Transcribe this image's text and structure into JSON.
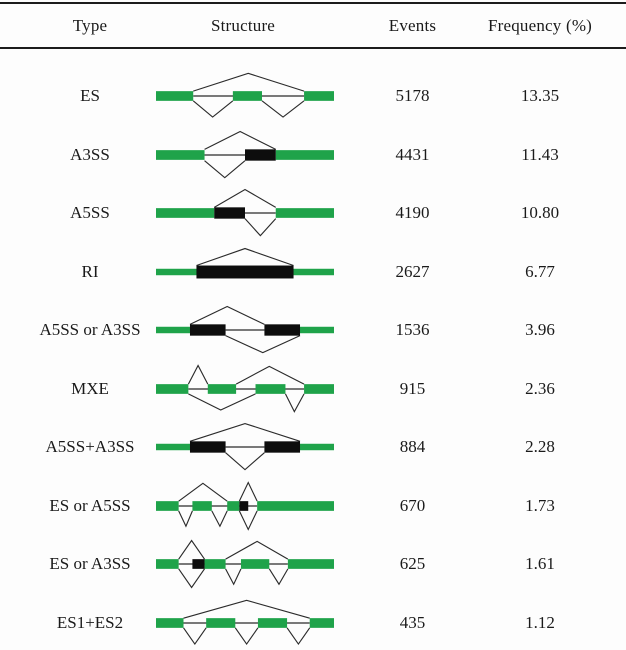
{
  "table": {
    "headers": [
      "Type",
      "Structure",
      "Events",
      "Frequency (%)"
    ],
    "rows": [
      {
        "type": "ES",
        "structure": "es",
        "structure_desc": "three green exons, upper skip junction over middle exon, two lower inclusion junctions",
        "events": "5178",
        "frequency": "13.35"
      },
      {
        "type": "A3SS",
        "structure": "a3ss",
        "structure_desc": "green exons with black alternative 3' extension on downstream exon, upper long junction, lower short junction",
        "events": "4431",
        "frequency": "11.43"
      },
      {
        "type": "A5SS",
        "structure": "a5ss",
        "structure_desc": "green exons with black alternative 5' extension on upstream exon, upper long junction, lower short junction",
        "events": "4190",
        "frequency": "10.80"
      },
      {
        "type": "RI",
        "structure": "ri",
        "structure_desc": "two green exons with large black retained intron between them and upper splice junction",
        "events": "2627",
        "frequency": "6.77"
      },
      {
        "type": "A5SS or A3SS",
        "structure": "a5ss_or_a3ss",
        "structure_desc": "two black alternative regions flanked by green, offset upper and lower junctions",
        "events": "1536",
        "frequency": "3.96"
      },
      {
        "type": "MXE",
        "structure": "mxe",
        "structure_desc": "four green exons, upper path includes second exon, lower path includes third exon (mutually exclusive)",
        "events": "915",
        "frequency": "2.36"
      },
      {
        "type": "A5SS+A3SS",
        "structure": "a5ss_plus_a3ss",
        "structure_desc": "two black alternative regions flanked by green, wide upper junction and narrow lower junction",
        "events": "884",
        "frequency": "2.28"
      },
      {
        "type": "ES or A5SS",
        "structure": "es_or_a5ss",
        "structure_desc": "four green exons with small black 5' extension and diamond junction near fourth exon, upper skip junction",
        "events": "670",
        "frequency": "1.73"
      },
      {
        "type": "ES or A3SS",
        "structure": "es_or_a3ss",
        "structure_desc": "four green exons with small black 3' extension and diamond junction near first exon, upper skip junction",
        "events": "625",
        "frequency": "1.61"
      },
      {
        "type": "ES1+ES2",
        "structure": "es1_plus_es2",
        "structure_desc": "four green exons, wide upper junction skipping two middle exons, three lower inclusion junctions",
        "events": "435",
        "frequency": "1.12"
      }
    ]
  },
  "colors": {
    "exon_green": "#1fa34a",
    "alt_region_black": "#0d0d0d",
    "junction_line": "#2b2b2b"
  },
  "chart_data": {
    "type": "table",
    "title": "",
    "columns": [
      "Type",
      "Structure",
      "Events",
      "Frequency (%)"
    ],
    "rows": [
      [
        "ES",
        5178,
        13.35
      ],
      [
        "A3SS",
        4431,
        11.43
      ],
      [
        "A5SS",
        4190,
        10.8
      ],
      [
        "RI",
        2627,
        6.77
      ],
      [
        "A5SS or A3SS",
        1536,
        3.96
      ],
      [
        "MXE",
        915,
        2.36
      ],
      [
        "A5SS+A3SS",
        884,
        2.28
      ],
      [
        "ES or A5SS",
        670,
        1.73
      ],
      [
        "ES or A3SS",
        625,
        1.61
      ],
      [
        "ES1+ES2",
        435,
        1.12
      ]
    ]
  }
}
